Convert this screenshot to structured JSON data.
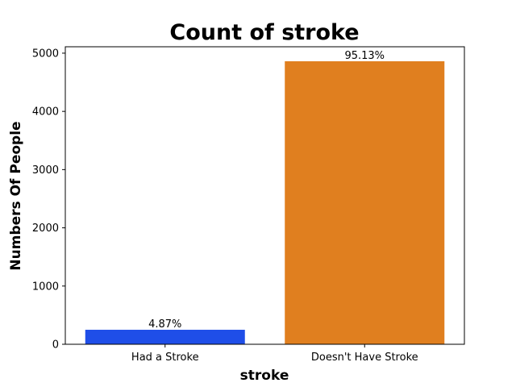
{
  "chart_data": {
    "type": "bar",
    "title": "Count of stroke",
    "xlabel": "stroke",
    "ylabel": "Numbers Of People",
    "categories": [
      "Had a Stroke",
      "Doesn't Have Stroke"
    ],
    "values": [
      249,
      4861
    ],
    "data_labels": [
      "4.87%",
      "95.13%"
    ],
    "colors": [
      "#1f4ee8",
      "#e07f1f"
    ],
    "ylim": [
      0,
      5110
    ],
    "yticks": [
      0,
      1000,
      2000,
      3000,
      4000,
      5000
    ],
    "ytick_labels": [
      "0",
      "1000",
      "2000",
      "3000",
      "4000",
      "5000"
    ],
    "grid": false,
    "legend": "none"
  }
}
